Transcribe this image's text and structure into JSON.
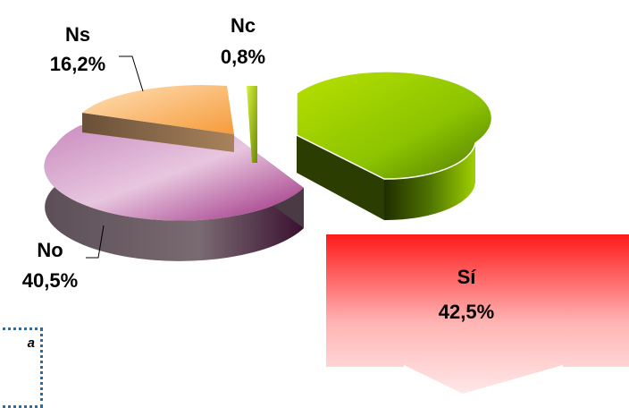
{
  "chart_data": {
    "type": "pie",
    "style": "3d-exploded",
    "slices": [
      {
        "label": "Sí",
        "value": 42.5,
        "display": "42,5%",
        "color": "#8fc400"
      },
      {
        "label": "No",
        "value": 40.5,
        "display": "40,5%",
        "color": "#d9a8cf"
      },
      {
        "label": "Ns",
        "value": 16.2,
        "display": "16,2%",
        "color": "#f7c48f"
      },
      {
        "label": "Nc",
        "value": 0.8,
        "display": "0,8%",
        "color": "#a9d21a"
      }
    ]
  },
  "callout": {
    "text": "a"
  }
}
